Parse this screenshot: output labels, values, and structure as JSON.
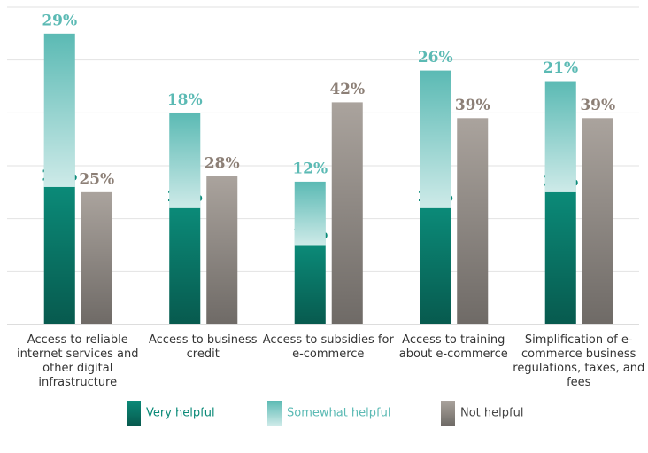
{
  "chart_data": {
    "type": "stacked-grouped-bar",
    "categories": [
      "Access to reliable internet services and other digital infrastructure",
      "Access to business credit",
      "Access to subsidies for e-commerce",
      "Access to training about e-commerce",
      "Simplification of e-commerce business regulations, taxes, and fees"
    ],
    "series": [
      {
        "name": "Very helpful",
        "color": "#0b8a78",
        "stack": 0,
        "values": [
          26,
          22,
          15,
          22,
          25
        ],
        "value_labels": [
          "26%",
          "22%",
          "15%",
          "22%",
          "25%"
        ]
      },
      {
        "name": "Somewhat helpful",
        "color": "#5bbab4",
        "stack": 0,
        "values": [
          29,
          18,
          12,
          26,
          21
        ],
        "value_labels": [
          "29%",
          "18%",
          "12%",
          "26%",
          "21%"
        ]
      },
      {
        "name": "Not helpful",
        "color": "#aaa39d",
        "stack": 1,
        "values": [
          25,
          28,
          42,
          39,
          39
        ],
        "value_labels": [
          "25%",
          "28%",
          "42%",
          "39%",
          "39%"
        ]
      }
    ],
    "label_colors": [
      "#0b8a78",
      "#5bbab4",
      "#8c7f76"
    ],
    "ylim": [
      0,
      60
    ],
    "yticks": [
      0,
      10,
      20,
      30,
      40,
      50,
      60
    ],
    "grid": true
  }
}
